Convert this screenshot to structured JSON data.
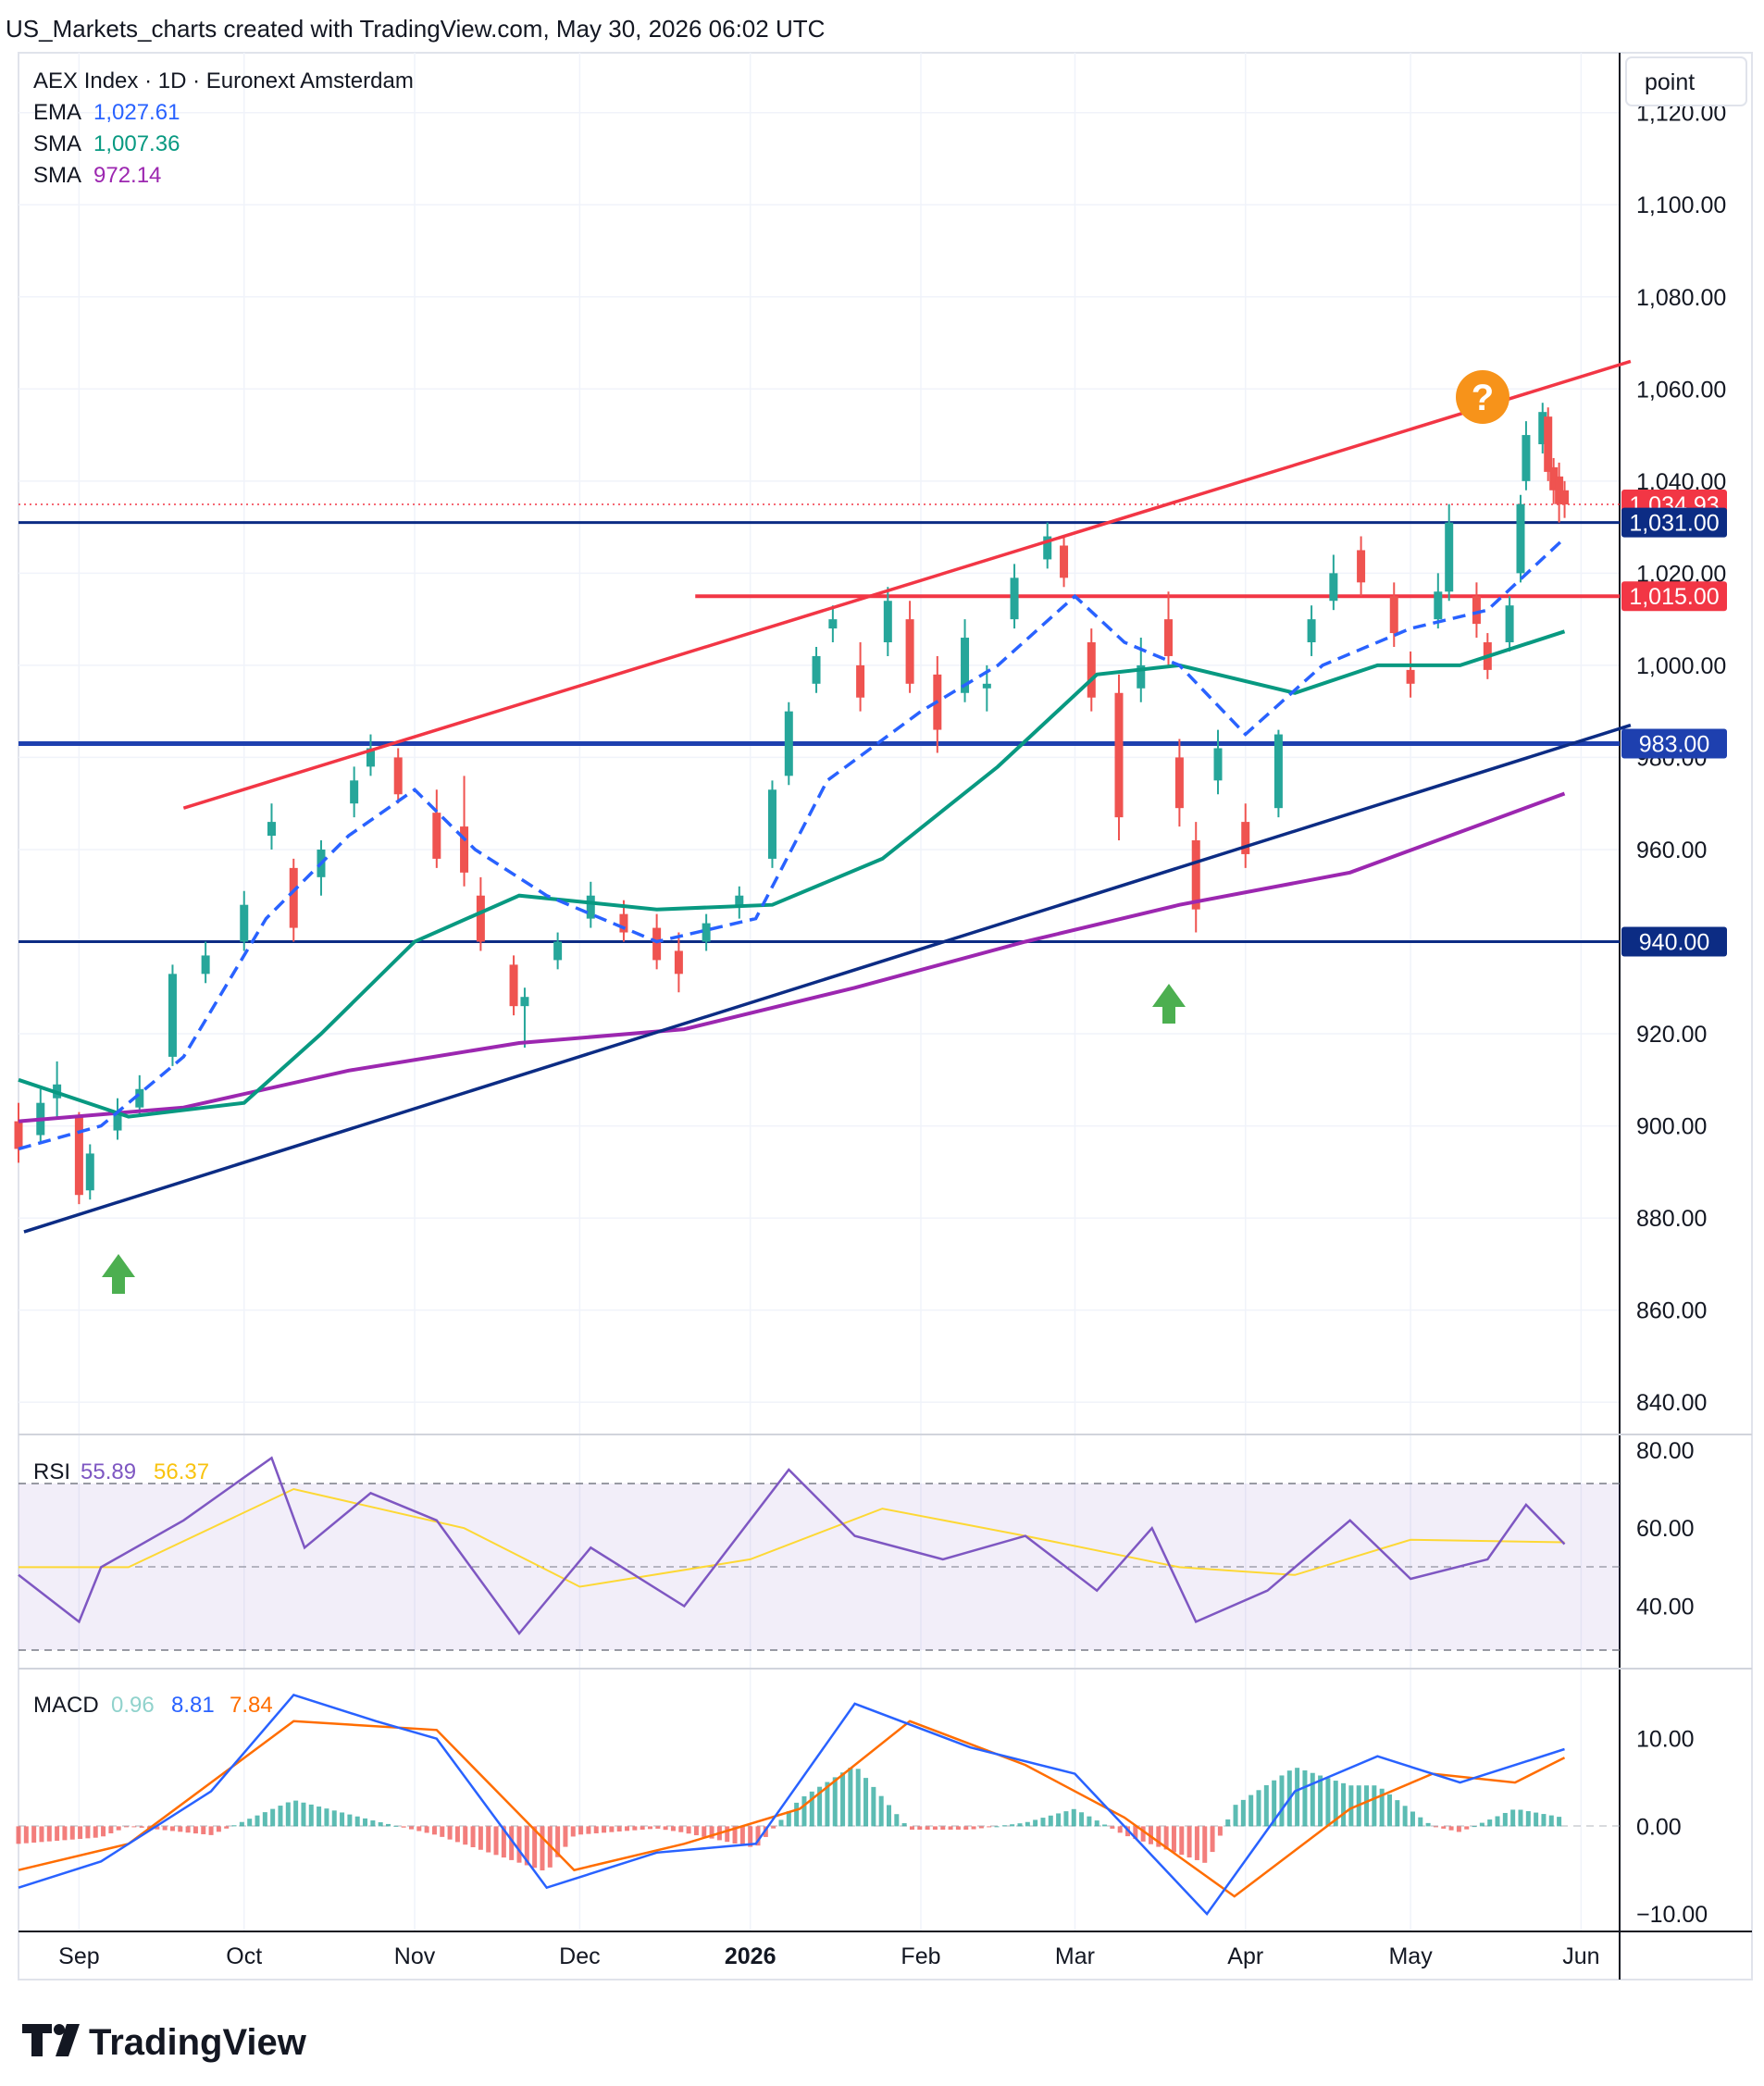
{
  "header": {
    "caption": "US_Markets_charts created with TradingView.com, May 30, 2026 06:02 UTC"
  },
  "legend": {
    "symbol": "AEX Index · 1D · Euronext Amsterdam",
    "ema_label": "EMA",
    "ema_value": "1,027.61",
    "sma50_label": "SMA",
    "sma50_value": "1,007.36",
    "sma200_label": "SMA",
    "sma200_value": "972.14",
    "rsi_label": "RSI",
    "rsi_value": "55.89",
    "rsi_ma_value": "56.37",
    "macd_label": "MACD",
    "macd_hist": "0.96",
    "macd_line": "8.81",
    "macd_signal": "7.84"
  },
  "price_axis": {
    "unit_button": "point",
    "ticks": [
      "1,120.00",
      "1,100.00",
      "1,080.00",
      "1,060.00",
      "1,040.00",
      "1,020.00",
      "1,000.00",
      "980.00",
      "960.00",
      "940.00",
      "920.00",
      "900.00",
      "880.00",
      "860.00",
      "840.00"
    ],
    "tick_values": [
      1120,
      1100,
      1080,
      1060,
      1040,
      1020,
      1000,
      980,
      960,
      940,
      920,
      900,
      880,
      860,
      840
    ],
    "badges": [
      {
        "text": "1,034.93",
        "value": 1034.93,
        "color": "#f23645"
      },
      {
        "text": "1,031.00",
        "value": 1031,
        "color": "#0c2c84"
      },
      {
        "text": "1,015.00",
        "value": 1015,
        "color": "#f23645"
      },
      {
        "text": "983.00",
        "value": 983,
        "color": "#1e40af"
      },
      {
        "text": "940.00",
        "value": 940,
        "color": "#0c2c84"
      }
    ]
  },
  "rsi_axis": {
    "ticks": [
      "80.00",
      "60.00",
      "40.00"
    ],
    "tick_values": [
      80,
      60,
      40
    ]
  },
  "macd_axis": {
    "ticks": [
      "10.00",
      "0.00",
      "−10.00"
    ],
    "tick_values": [
      10,
      0,
      -10
    ]
  },
  "time_axis": {
    "labels": [
      "Sep",
      "Oct",
      "Nov",
      "Dec",
      "2026",
      "Feb",
      "Mar",
      "Apr",
      "May",
      "Jun"
    ]
  },
  "annotations": {
    "question_mark": "?"
  },
  "logo": {
    "text": "TradingView"
  },
  "colors": {
    "up": "#26a69a",
    "down": "#ef5350",
    "ema": "#2962ff",
    "sma50": "#089981",
    "sma200": "#9c27b0",
    "resistance": "#f23645",
    "support": "#0c2c84",
    "rsi": "#7e57c2",
    "rsi_ma": "#fdd835",
    "macd": "#2962ff",
    "signal": "#ff6d00",
    "orange": "#f7931a",
    "arrow": "#4caf50"
  },
  "chart_data": {
    "type": "candlestick",
    "title": "AEX Index · 1D · Euronext Amsterdam",
    "x_range": [
      "2025-08-21",
      "2026-06-08"
    ],
    "y_range": [
      833,
      1133
    ],
    "ohlc_daily_sampled": [
      {
        "date": "2025-08-21",
        "open": 901,
        "high": 905,
        "low": 892,
        "close": 895
      },
      {
        "date": "2025-08-25",
        "open": 898,
        "high": 908,
        "low": 896,
        "close": 905
      },
      {
        "date": "2025-08-28",
        "open": 906,
        "high": 914,
        "low": 902,
        "close": 909
      },
      {
        "date": "2025-09-01",
        "open": 902,
        "high": 903,
        "low": 883,
        "close": 885
      },
      {
        "date": "2025-09-03",
        "open": 886,
        "high": 896,
        "low": 884,
        "close": 894
      },
      {
        "date": "2025-09-08",
        "open": 899,
        "high": 906,
        "low": 897,
        "close": 903
      },
      {
        "date": "2025-09-12",
        "open": 904,
        "high": 911,
        "low": 902,
        "close": 908
      },
      {
        "date": "2025-09-18",
        "open": 915,
        "high": 935,
        "low": 913,
        "close": 933
      },
      {
        "date": "2025-09-24",
        "open": 933,
        "high": 940,
        "low": 931,
        "close": 937
      },
      {
        "date": "2025-10-01",
        "open": 940,
        "high": 951,
        "low": 938,
        "close": 948
      },
      {
        "date": "2025-10-06",
        "open": 963,
        "high": 970,
        "low": 960,
        "close": 966
      },
      {
        "date": "2025-10-10",
        "open": 956,
        "high": 958,
        "low": 940,
        "close": 943
      },
      {
        "date": "2025-10-15",
        "open": 954,
        "high": 962,
        "low": 950,
        "close": 960
      },
      {
        "date": "2025-10-21",
        "open": 970,
        "high": 978,
        "low": 967,
        "close": 975
      },
      {
        "date": "2025-10-24",
        "open": 978,
        "high": 985,
        "low": 976,
        "close": 982
      },
      {
        "date": "2025-10-29",
        "open": 980,
        "high": 982,
        "low": 970,
        "close": 972
      },
      {
        "date": "2025-11-05",
        "open": 968,
        "high": 973,
        "low": 956,
        "close": 958
      },
      {
        "date": "2025-11-10",
        "open": 965,
        "high": 976,
        "low": 952,
        "close": 955
      },
      {
        "date": "2025-11-13",
        "open": 950,
        "high": 954,
        "low": 938,
        "close": 940
      },
      {
        "date": "2025-11-19",
        "open": 935,
        "high": 937,
        "low": 924,
        "close": 926
      },
      {
        "date": "2025-11-21",
        "open": 926,
        "high": 930,
        "low": 917,
        "close": 928
      },
      {
        "date": "2025-11-27",
        "open": 936,
        "high": 942,
        "low": 934,
        "close": 940
      },
      {
        "date": "2025-12-03",
        "open": 945,
        "high": 953,
        "low": 943,
        "close": 950
      },
      {
        "date": "2025-12-09",
        "open": 946,
        "high": 949,
        "low": 940,
        "close": 942
      },
      {
        "date": "2025-12-15",
        "open": 943,
        "high": 946,
        "low": 934,
        "close": 936
      },
      {
        "date": "2025-12-19",
        "open": 938,
        "high": 942,
        "low": 929,
        "close": 933
      },
      {
        "date": "2025-12-24",
        "open": 940,
        "high": 946,
        "low": 938,
        "close": 944
      },
      {
        "date": "2025-12-30",
        "open": 948,
        "high": 952,
        "low": 945,
        "close": 950
      },
      {
        "date": "2026-01-05",
        "open": 958,
        "high": 975,
        "low": 956,
        "close": 973
      },
      {
        "date": "2026-01-08",
        "open": 976,
        "high": 992,
        "low": 974,
        "close": 990
      },
      {
        "date": "2026-01-13",
        "open": 996,
        "high": 1004,
        "low": 994,
        "close": 1002
      },
      {
        "date": "2026-01-16",
        "open": 1008,
        "high": 1013,
        "low": 1005,
        "close": 1010
      },
      {
        "date": "2026-01-21",
        "open": 1000,
        "high": 1005,
        "low": 990,
        "close": 993
      },
      {
        "date": "2026-01-26",
        "open": 1005,
        "high": 1017,
        "low": 1002,
        "close": 1014
      },
      {
        "date": "2026-01-30",
        "open": 1010,
        "high": 1014,
        "low": 994,
        "close": 996
      },
      {
        "date": "2026-02-04",
        "open": 998,
        "high": 1002,
        "low": 981,
        "close": 986
      },
      {
        "date": "2026-02-09",
        "open": 994,
        "high": 1010,
        "low": 992,
        "close": 1006
      },
      {
        "date": "2026-02-13",
        "open": 995,
        "high": 1000,
        "low": 990,
        "close": 996
      },
      {
        "date": "2026-02-18",
        "open": 1010,
        "high": 1022,
        "low": 1008,
        "close": 1019
      },
      {
        "date": "2026-02-24",
        "open": 1023,
        "high": 1031,
        "low": 1021,
        "close": 1028
      },
      {
        "date": "2026-02-27",
        "open": 1026,
        "high": 1028,
        "low": 1017,
        "close": 1019
      },
      {
        "date": "2026-03-04",
        "open": 1005,
        "high": 1008,
        "low": 990,
        "close": 993
      },
      {
        "date": "2026-03-09",
        "open": 994,
        "high": 998,
        "low": 962,
        "close": 967
      },
      {
        "date": "2026-03-13",
        "open": 995,
        "high": 1006,
        "low": 992,
        "close": 1000
      },
      {
        "date": "2026-03-18",
        "open": 1010,
        "high": 1016,
        "low": 1000,
        "close": 1002
      },
      {
        "date": "2026-03-20",
        "open": 980,
        "high": 984,
        "low": 965,
        "close": 969
      },
      {
        "date": "2026-03-23",
        "open": 962,
        "high": 966,
        "low": 942,
        "close": 947
      },
      {
        "date": "2026-03-27",
        "open": 975,
        "high": 986,
        "low": 972,
        "close": 982
      },
      {
        "date": "2026-04-01",
        "open": 966,
        "high": 970,
        "low": 956,
        "close": 959
      },
      {
        "date": "2026-04-07",
        "open": 969,
        "high": 986,
        "low": 967,
        "close": 985
      },
      {
        "date": "2026-04-13",
        "open": 1005,
        "high": 1013,
        "low": 1002,
        "close": 1010
      },
      {
        "date": "2026-04-17",
        "open": 1014,
        "high": 1024,
        "low": 1012,
        "close": 1020
      },
      {
        "date": "2026-04-22",
        "open": 1025,
        "high": 1028,
        "low": 1015,
        "close": 1018
      },
      {
        "date": "2026-04-28",
        "open": 1015,
        "high": 1018,
        "low": 1004,
        "close": 1007
      },
      {
        "date": "2026-05-01",
        "open": 999,
        "high": 1003,
        "low": 993,
        "close": 996
      },
      {
        "date": "2026-05-06",
        "open": 1010,
        "high": 1020,
        "low": 1008,
        "close": 1016
      },
      {
        "date": "2026-05-08",
        "open": 1016,
        "high": 1035,
        "low": 1014,
        "close": 1031
      },
      {
        "date": "2026-05-13",
        "open": 1015,
        "high": 1018,
        "low": 1006,
        "close": 1009
      },
      {
        "date": "2026-05-15",
        "open": 1005,
        "high": 1007,
        "low": 997,
        "close": 999
      },
      {
        "date": "2026-05-19",
        "open": 1005,
        "high": 1015,
        "low": 1003,
        "close": 1013
      },
      {
        "date": "2026-05-21",
        "open": 1020,
        "high": 1037,
        "low": 1018,
        "close": 1035
      },
      {
        "date": "2026-05-22",
        "open": 1040,
        "high": 1053,
        "low": 1038,
        "close": 1050
      },
      {
        "date": "2026-05-25",
        "open": 1048,
        "high": 1057,
        "low": 1046,
        "close": 1055
      },
      {
        "date": "2026-05-26",
        "open": 1054,
        "high": 1056,
        "low": 1040,
        "close": 1042
      },
      {
        "date": "2026-05-27",
        "open": 1043,
        "high": 1045,
        "low": 1035,
        "close": 1038
      },
      {
        "date": "2026-05-28",
        "open": 1041,
        "high": 1044,
        "low": 1031,
        "close": 1035
      },
      {
        "date": "2026-05-29",
        "open": 1038,
        "high": 1040,
        "low": 1032,
        "close": 1034.93
      }
    ],
    "indicators": {
      "ema": [
        [
          "2025-08-21",
          895
        ],
        [
          "2025-09-05",
          900
        ],
        [
          "2025-09-20",
          915
        ],
        [
          "2025-10-05",
          945
        ],
        [
          "2025-10-20",
          963
        ],
        [
          "2025-11-01",
          973
        ],
        [
          "2025-11-12",
          960
        ],
        [
          "2025-11-25",
          950
        ],
        [
          "2025-12-15",
          940
        ],
        [
          "2026-01-02",
          945
        ],
        [
          "2026-01-15",
          975
        ],
        [
          "2026-02-01",
          990
        ],
        [
          "2026-02-15",
          1000
        ],
        [
          "2026-03-01",
          1015
        ],
        [
          "2026-03-10",
          1005
        ],
        [
          "2026-03-20",
          1000
        ],
        [
          "2026-04-01",
          985
        ],
        [
          "2026-04-15",
          1000
        ],
        [
          "2026-05-01",
          1008
        ],
        [
          "2026-05-15",
          1012
        ],
        [
          "2026-05-29",
          1027.61
        ]
      ],
      "sma50": [
        [
          "2025-08-21",
          910
        ],
        [
          "2025-09-10",
          902
        ],
        [
          "2025-10-01",
          905
        ],
        [
          "2025-10-15",
          920
        ],
        [
          "2025-11-01",
          940
        ],
        [
          "2025-11-20",
          950
        ],
        [
          "2025-12-15",
          947
        ],
        [
          "2026-01-05",
          948
        ],
        [
          "2026-01-25",
          958
        ],
        [
          "2026-02-15",
          978
        ],
        [
          "2026-03-05",
          998
        ],
        [
          "2026-03-20",
          1000
        ],
        [
          "2026-04-10",
          994
        ],
        [
          "2026-04-25",
          1000
        ],
        [
          "2026-05-10",
          1000
        ],
        [
          "2026-05-29",
          1007.36
        ]
      ],
      "sma200": [
        [
          "2025-08-21",
          901
        ],
        [
          "2025-09-20",
          904
        ],
        [
          "2025-10-20",
          912
        ],
        [
          "2025-11-20",
          918
        ],
        [
          "2025-12-20",
          921
        ],
        [
          "2026-01-20",
          930
        ],
        [
          "2026-02-20",
          940
        ],
        [
          "2026-03-20",
          948
        ],
        [
          "2026-04-20",
          955
        ],
        [
          "2026-05-29",
          972.14
        ]
      ]
    },
    "levels": [
      940,
      983,
      1015,
      1031
    ],
    "trendlines": [
      {
        "name": "resistance",
        "from": [
          "2025-09-20",
          969
        ],
        "to": [
          "2026-06-10",
          1066
        ]
      },
      {
        "name": "support",
        "from": [
          "2025-08-22",
          877
        ],
        "to": [
          "2026-06-10",
          987
        ]
      }
    ],
    "rsi": {
      "y_range": [
        24,
        84
      ],
      "bands": [
        30,
        70
      ],
      "value": 55.89,
      "ma": 56.37,
      "series": [
        [
          "2025-08-21",
          48
        ],
        [
          "2025-09-01",
          36
        ],
        [
          "2025-09-05",
          50
        ],
        [
          "2025-09-20",
          62
        ],
        [
          "2025-10-06",
          78
        ],
        [
          "2025-10-12",
          55
        ],
        [
          "2025-10-24",
          69
        ],
        [
          "2025-11-05",
          62
        ],
        [
          "2025-11-20",
          33
        ],
        [
          "2025-12-03",
          55
        ],
        [
          "2025-12-20",
          40
        ],
        [
          "2026-01-08",
          75
        ],
        [
          "2026-01-20",
          58
        ],
        [
          "2026-02-05",
          52
        ],
        [
          "2026-02-20",
          58
        ],
        [
          "2026-03-05",
          44
        ],
        [
          "2026-03-15",
          60
        ],
        [
          "2026-03-23",
          36
        ],
        [
          "2026-04-05",
          44
        ],
        [
          "2026-04-20",
          62
        ],
        [
          "2026-05-01",
          47
        ],
        [
          "2026-05-15",
          52
        ],
        [
          "2026-05-22",
          66
        ],
        [
          "2026-05-29",
          55.89
        ]
      ],
      "ma_series": [
        [
          "2025-08-21",
          50
        ],
        [
          "2025-09-10",
          50
        ],
        [
          "2025-10-10",
          70
        ],
        [
          "2025-11-10",
          60
        ],
        [
          "2025-12-01",
          45
        ],
        [
          "2026-01-01",
          52
        ],
        [
          "2026-01-25",
          65
        ],
        [
          "2026-02-20",
          58
        ],
        [
          "2026-03-20",
          50
        ],
        [
          "2026-04-10",
          48
        ],
        [
          "2026-05-01",
          57
        ],
        [
          "2026-05-29",
          56.37
        ]
      ]
    },
    "macd": {
      "y_range": [
        -12,
        18
      ],
      "line": 8.81,
      "signal": 7.84,
      "hist": 0.96,
      "line_series": [
        [
          "2025-08-21",
          -7
        ],
        [
          "2025-09-05",
          -4
        ],
        [
          "2025-09-25",
          4
        ],
        [
          "2025-10-10",
          15
        ],
        [
          "2025-10-25",
          12
        ],
        [
          "2025-11-05",
          10
        ],
        [
          "2025-11-25",
          -7
        ],
        [
          "2025-12-15",
          -3
        ],
        [
          "2026-01-02",
          -2
        ],
        [
          "2026-01-20",
          14
        ],
        [
          "2026-02-10",
          9
        ],
        [
          "2026-03-01",
          6
        ],
        [
          "2026-03-25",
          -10
        ],
        [
          "2026-04-10",
          4
        ],
        [
          "2026-04-25",
          8
        ],
        [
          "2026-05-10",
          5
        ],
        [
          "2026-05-29",
          8.81
        ]
      ],
      "signal_series": [
        [
          "2025-08-21",
          -5
        ],
        [
          "2025-09-10",
          -2
        ],
        [
          "2025-10-10",
          12
        ],
        [
          "2025-11-05",
          11
        ],
        [
          "2025-11-30",
          -5
        ],
        [
          "2025-12-20",
          -2
        ],
        [
          "2026-01-10",
          2
        ],
        [
          "2026-01-30",
          12
        ],
        [
          "2026-02-20",
          7
        ],
        [
          "2026-03-10",
          1
        ],
        [
          "2026-03-30",
          -8
        ],
        [
          "2026-04-20",
          2
        ],
        [
          "2026-05-05",
          6
        ],
        [
          "2026-05-20",
          5
        ],
        [
          "2026-05-29",
          7.84
        ]
      ]
    }
  }
}
